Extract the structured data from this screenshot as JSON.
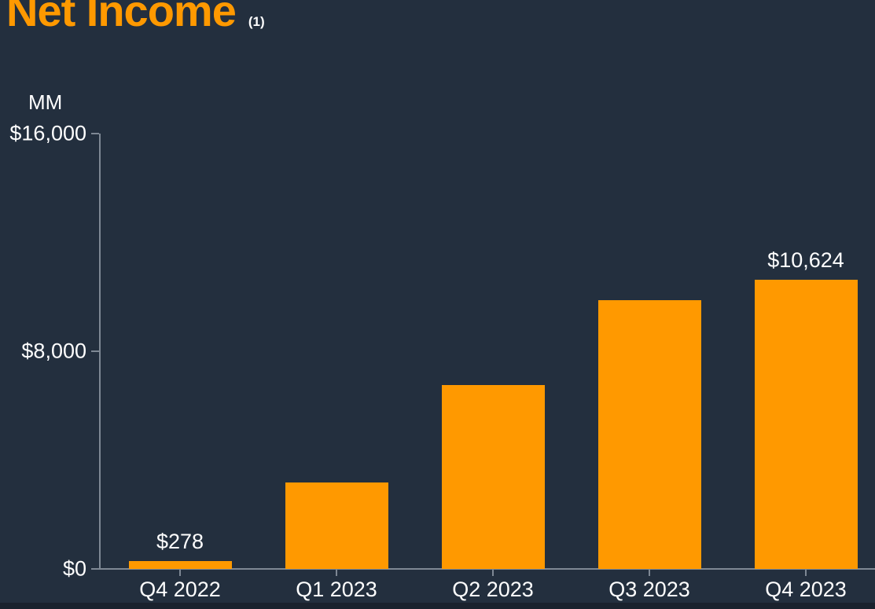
{
  "title": {
    "text": "Net Income",
    "footnote_marker": "(1)"
  },
  "colors": {
    "background": "#232F3E",
    "bar": "#FF9900",
    "title": "#FF9900",
    "text": "#FFFFFF",
    "axis": "#7E8894",
    "bottom_strip": "#1A222E"
  },
  "chart_data": {
    "type": "bar",
    "title": "Net Income",
    "unit_label": "MM",
    "categories": [
      "Q4 2022",
      "Q1 2023",
      "Q2 2023",
      "Q3 2023",
      "Q4 2023"
    ],
    "values": [
      278,
      3172,
      6750,
      9879,
      10624
    ],
    "bar_labels": [
      "$278",
      "",
      "",
      "",
      "$10,624"
    ],
    "y_ticks": [
      {
        "value": 0,
        "label": "$0"
      },
      {
        "value": 8000,
        "label": "$8,000"
      },
      {
        "value": 16000,
        "label": "$16,000"
      }
    ],
    "ylim": [
      0,
      16000
    ],
    "xlabel": "",
    "ylabel": "MM",
    "grid": false,
    "legend": "none",
    "bar_color": "#FF9900"
  }
}
